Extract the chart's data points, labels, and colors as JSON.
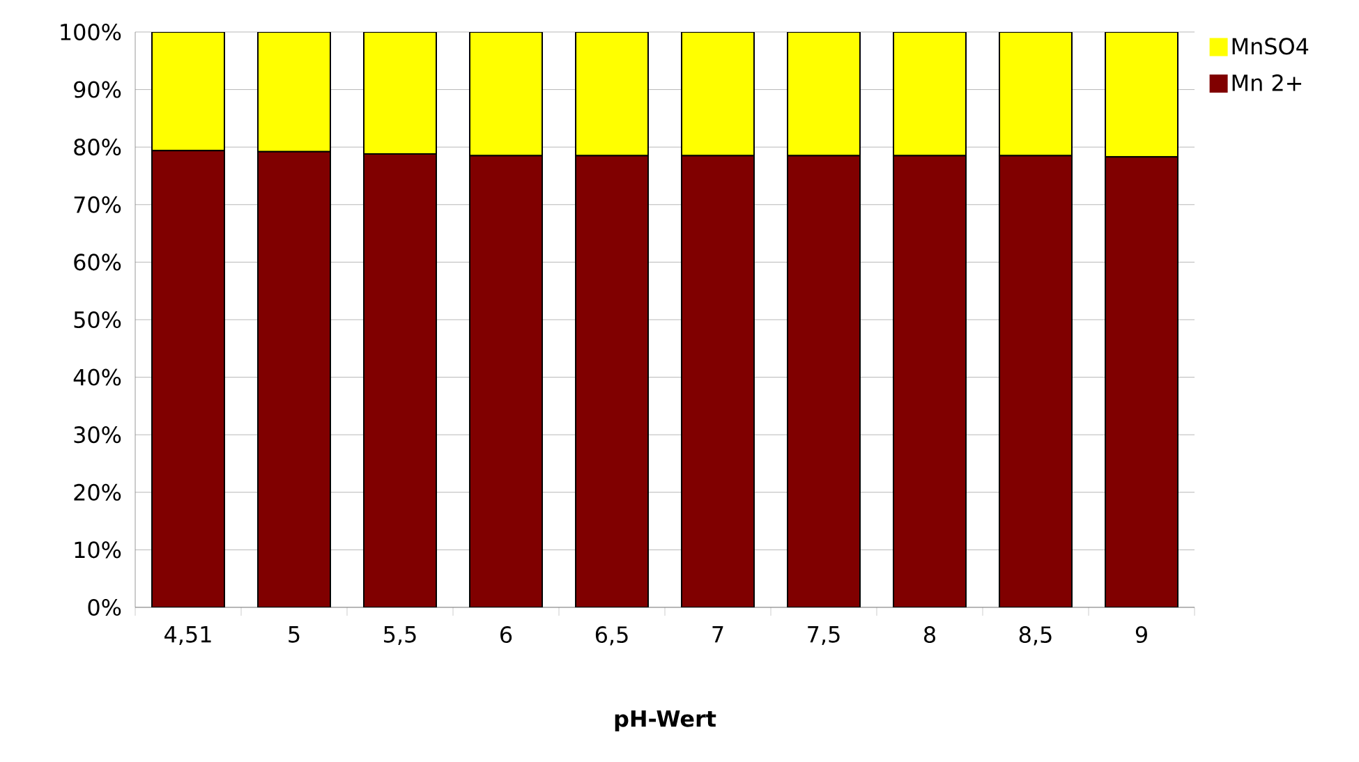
{
  "chart_data": {
    "type": "bar",
    "stacked": true,
    "xlabel": "pH-Wert",
    "categories": [
      "4,51",
      "5",
      "5,5",
      "6",
      "6,5",
      "7",
      "7,5",
      "8",
      "8,5",
      "9"
    ],
    "series": [
      {
        "name": "Mn 2+",
        "color": "#800000",
        "values": [
          79.4,
          79.2,
          78.8,
          78.5,
          78.5,
          78.5,
          78.5,
          78.5,
          78.5,
          78.3
        ]
      },
      {
        "name": "MnSO4",
        "color": "#ffff00",
        "values": [
          20.6,
          20.8,
          21.2,
          21.5,
          21.5,
          21.5,
          21.5,
          21.5,
          21.5,
          21.7
        ]
      }
    ],
    "ylim": [
      0,
      100
    ],
    "yticks": [
      {
        "value": 0,
        "label": "0%"
      },
      {
        "value": 10,
        "label": "10%"
      },
      {
        "value": 20,
        "label": "20%"
      },
      {
        "value": 30,
        "label": "30%"
      },
      {
        "value": 40,
        "label": "40%"
      },
      {
        "value": 50,
        "label": "50%"
      },
      {
        "value": 60,
        "label": "60%"
      },
      {
        "value": 70,
        "label": "70%"
      },
      {
        "value": 80,
        "label": "80%"
      },
      {
        "value": 90,
        "label": "90%"
      },
      {
        "value": 100,
        "label": "100%"
      }
    ],
    "grid": "y",
    "legend": "top right"
  }
}
